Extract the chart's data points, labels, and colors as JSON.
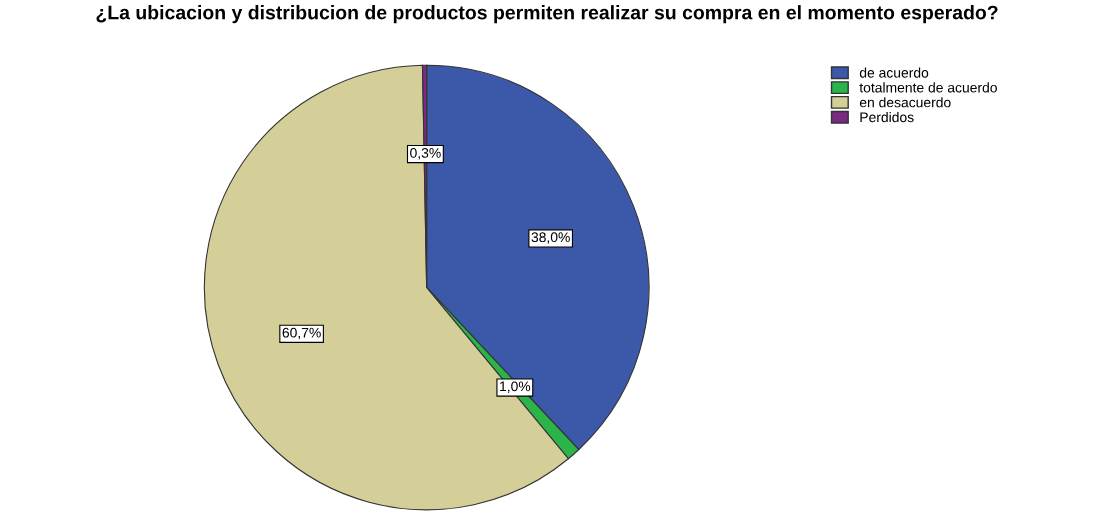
{
  "chart_data": {
    "type": "pie",
    "title": "¿La ubicacion y distribucion de productos permiten realizar su compra en el momento esperado?",
    "categories": [
      "de acuerdo",
      "totalmente de acuerdo",
      "en desacuerdo",
      "Perdidos"
    ],
    "values": [
      38.0,
      1.0,
      60.7,
      0.3
    ],
    "colors": [
      "#3c58a8",
      "#2bb44a",
      "#d4ce98",
      "#7a2a80"
    ],
    "value_labels": [
      "38,0%",
      "1,0%",
      "60,7%",
      "0,3%"
    ],
    "legend": "top right"
  }
}
